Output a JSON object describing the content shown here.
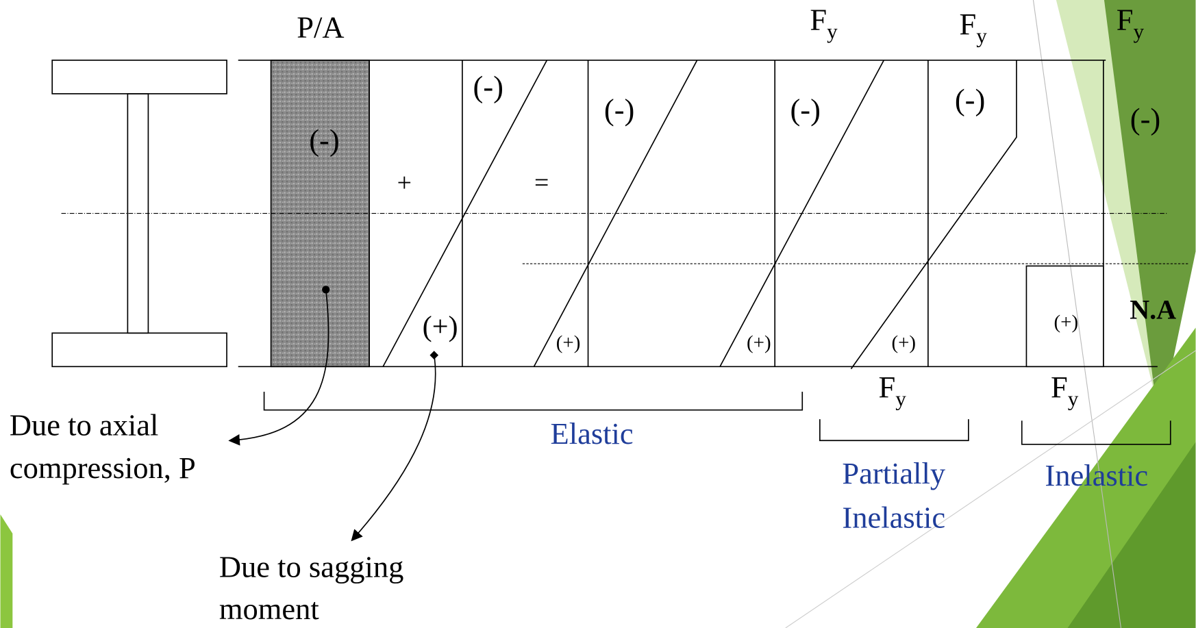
{
  "diagram": {
    "top": {
      "p_over_a": "P/A",
      "fy": [
        {
          "base": "F",
          "sub": "y"
        },
        {
          "base": "F",
          "sub": "y"
        },
        {
          "base": "F",
          "sub": "y"
        }
      ]
    },
    "bottom_fy": [
      {
        "base": "F",
        "sub": "y"
      },
      {
        "base": "F",
        "sub": "y"
      }
    ],
    "compression_signs": [
      "(-)",
      "(-)",
      "(-)",
      "(-)",
      "(-)",
      "(-)"
    ],
    "tension_signs": [
      "(+)",
      "(+)",
      "(+)",
      "(+)",
      "(+)"
    ],
    "plus": "+",
    "equals": "=",
    "neutral_axis": "N.A",
    "ranges": {
      "elastic": "Elastic",
      "partially_inelastic": [
        "Partially",
        "Inelastic"
      ],
      "inelastic": "Inelastic"
    },
    "notes": {
      "axial": [
        "Due to axial",
        "compression, P"
      ],
      "sagging": [
        "Due to sagging",
        "moment"
      ]
    }
  }
}
